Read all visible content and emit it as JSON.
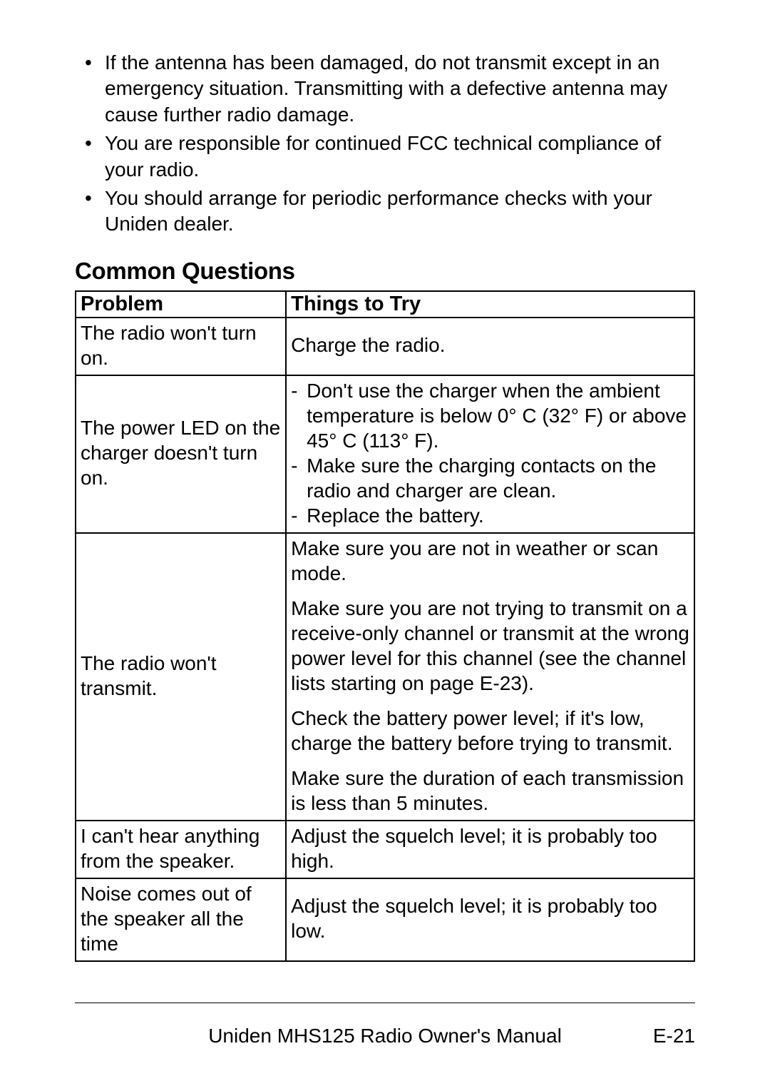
{
  "bullets": [
    "If the antenna has been damaged, do not transmit except in an emergency situation. Transmitting with a defective antenna may cause further radio damage.",
    "You are responsible for continued FCC technical compliance of your radio.",
    "You should arrange for periodic performance checks with your Uniden dealer."
  ],
  "section_heading": "Common Questions",
  "table": {
    "headers": {
      "problem": "Problem",
      "solution": "Things to Try"
    },
    "rows": [
      {
        "problem": "The radio won't turn on.",
        "solution_plain": "Charge the radio."
      },
      {
        "problem": "The power LED on the charger doesn't turn on.",
        "solution_list": [
          "Don't use the charger when the ambient temperature is below 0° C (32° F) or above 45° C (113° F).",
          "Make sure the charging contacts on the radio and charger are clean.",
          "Replace the battery."
        ]
      },
      {
        "problem": "The radio won't transmit.",
        "solution_paras": [
          "Make sure you are not in weather or scan mode.",
          "Make sure you are not trying to transmit on a receive-only channel or transmit at the wrong power level for this channel (see the channel lists starting on page E-23).",
          "Check the battery power level; if it's low, charge the battery before trying to transmit.",
          "Make sure the duration of each transmission is less than 5 minutes."
        ]
      },
      {
        "problem": "I can't hear anything from the speaker.",
        "solution_plain": "Adjust the squelch level; it is probably too high."
      },
      {
        "problem": "Noise comes out of the speaker all the time",
        "solution_plain": "Adjust the squelch level; it is probably too low."
      }
    ]
  },
  "footer": {
    "title": "Uniden MHS125 Radio Owner's Manual",
    "page": "E-21"
  }
}
